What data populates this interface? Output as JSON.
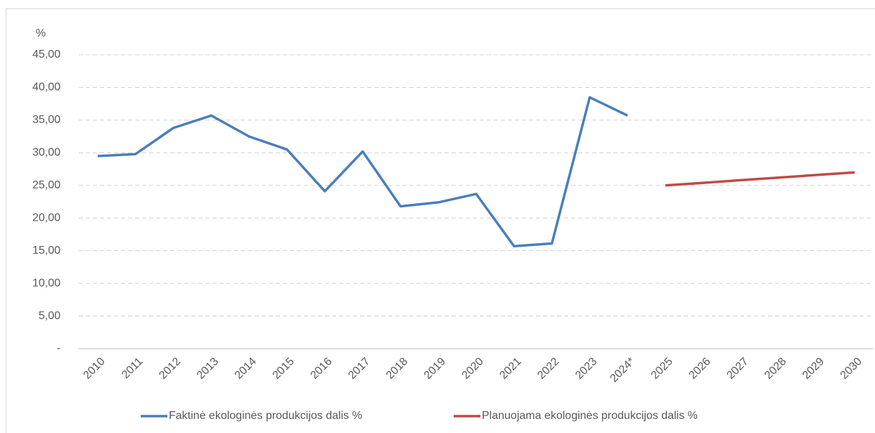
{
  "chart_data": {
    "type": "line",
    "y_label": "%",
    "categories": [
      "2010",
      "2011",
      "2012",
      "2013",
      "2014",
      "2015",
      "2016",
      "2017",
      "2018",
      "2019",
      "2020",
      "2021",
      "2022",
      "2023",
      "2024*",
      "2025",
      "2026",
      "2027",
      "2028",
      "2029",
      "2030"
    ],
    "series": [
      {
        "name": "Faktinė ekologinės produkcijos dalis %",
        "color": "#4a7ebb",
        "values": [
          29.5,
          29.8,
          33.8,
          35.7,
          32.5,
          30.5,
          24.1,
          30.2,
          21.8,
          22.4,
          23.7,
          15.7,
          16.1,
          38.5,
          35.7,
          null,
          null,
          null,
          null,
          null,
          null
        ]
      },
      {
        "name": "Planuojama ekologinės produkcijos dalis %",
        "color": "#be4b48",
        "values": [
          null,
          null,
          null,
          null,
          null,
          null,
          null,
          null,
          null,
          null,
          null,
          null,
          null,
          null,
          null,
          25.0,
          25.4,
          25.8,
          26.2,
          26.6,
          27.0
        ]
      }
    ],
    "ylim": [
      0,
      45
    ],
    "yticks": [
      {
        "value": 0,
        "label": "-"
      },
      {
        "value": 5,
        "label": "5,00"
      },
      {
        "value": 10,
        "label": "10,00"
      },
      {
        "value": 15,
        "label": "15,00"
      },
      {
        "value": 20,
        "label": "20,00"
      },
      {
        "value": 25,
        "label": "25,00"
      },
      {
        "value": 30,
        "label": "30,00"
      },
      {
        "value": 35,
        "label": "35,00"
      },
      {
        "value": 40,
        "label": "40,00"
      },
      {
        "value": 45,
        "label": "45,00"
      }
    ],
    "grid": true,
    "legend": "bottom"
  }
}
